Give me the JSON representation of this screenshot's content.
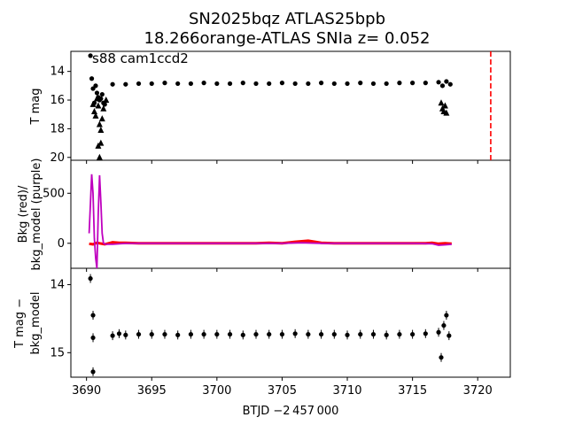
{
  "title": {
    "line1": "SN2025bqz  ATLAS25bpb",
    "line2": "18.266orange-ATLAS SNIa z= 0.052"
  },
  "annotation": "s88 cam1ccd2",
  "colors": {
    "points": "#000000",
    "bkg": "#ff0000",
    "bkg_model": "#bf00bf",
    "vline": "#ff0000"
  },
  "chart_data": [
    {
      "type": "scatter",
      "panel": "top",
      "ylabel": "T mag",
      "ylim": [
        20.2,
        12.6
      ],
      "yticks": [
        14,
        16,
        18,
        20
      ],
      "xlim": [
        3688.8,
        3722.5
      ],
      "vline_x": 3721.0,
      "vline_style": "dashed",
      "detections": {
        "x": [
          3690.3,
          3690.4,
          3690.5,
          3690.6,
          3690.7,
          3690.8,
          3690.9,
          3691.0,
          3691.1,
          3691.2,
          3691.3,
          3691.4,
          3692.0,
          3693.0,
          3694.0,
          3695.0,
          3696.0,
          3697.0,
          3698.0,
          3699.0,
          3700.0,
          3701.0,
          3702.0,
          3703.0,
          3704.0,
          3705.0,
          3706.0,
          3707.0,
          3708.0,
          3709.0,
          3710.0,
          3711.0,
          3712.0,
          3713.0,
          3714.0,
          3715.0,
          3716.0,
          3717.0,
          3717.3,
          3717.6,
          3717.9
        ],
        "y": [
          12.9,
          14.5,
          15.2,
          16.2,
          15.0,
          15.5,
          15.8,
          16.0,
          15.9,
          15.6,
          16.2,
          16.3,
          14.9,
          14.9,
          14.85,
          14.85,
          14.8,
          14.85,
          14.85,
          14.8,
          14.85,
          14.85,
          14.8,
          14.85,
          14.85,
          14.8,
          14.85,
          14.85,
          14.8,
          14.85,
          14.85,
          14.8,
          14.85,
          14.85,
          14.8,
          14.8,
          14.8,
          14.75,
          15.0,
          14.7,
          14.9
        ]
      },
      "upper_limits": {
        "x": [
          3690.5,
          3690.6,
          3690.7,
          3690.8,
          3690.9,
          3691.0,
          3691.1,
          3691.2,
          3691.3,
          3691.5,
          3690.9,
          3691.0,
          3691.1,
          3717.2,
          3717.3,
          3717.4,
          3717.5,
          3717.6
        ],
        "y": [
          16.3,
          16.8,
          17.1,
          15.9,
          16.4,
          17.7,
          18.1,
          17.3,
          16.6,
          16.0,
          19.2,
          20.0,
          19.0,
          16.2,
          16.6,
          16.8,
          16.4,
          16.9
        ]
      }
    },
    {
      "type": "line",
      "panel": "middle",
      "ylabel": "Bkg (red)/\nbkg_model (purple)",
      "ylim": [
        -250,
        830
      ],
      "yticks": [
        0,
        500
      ],
      "xlim": [
        3688.8,
        3722.5
      ],
      "series": [
        {
          "color": "#ff0000",
          "x": [
            3690.2,
            3690.5,
            3690.8,
            3691.0,
            3691.4,
            3692.0,
            3692.5,
            3693.0,
            3694.0,
            3695.0,
            3696.0,
            3697.0,
            3698.0,
            3699.0,
            3700.0,
            3701.0,
            3702.0,
            3703.0,
            3704.0,
            3705.0,
            3706.0,
            3707.0,
            3708.0,
            3709.0,
            3710.0,
            3711.0,
            3712.0,
            3713.0,
            3714.0,
            3715.0,
            3716.0,
            3716.5,
            3717.0,
            3717.5,
            3718.0
          ],
          "y": [
            -5,
            -10,
            5,
            0,
            -10,
            10,
            5,
            5,
            0,
            0,
            0,
            0,
            0,
            0,
            0,
            0,
            0,
            0,
            5,
            0,
            15,
            25,
            5,
            0,
            0,
            0,
            0,
            0,
            0,
            0,
            0,
            5,
            -5,
            0,
            -5
          ]
        },
        {
          "color": "#bf00bf",
          "x": [
            3690.2,
            3690.3,
            3690.4,
            3690.5,
            3690.6,
            3690.7,
            3690.8,
            3690.9,
            3691.0,
            3691.1,
            3691.2,
            3691.3,
            3691.5,
            3692.0,
            3693.0,
            3695.0,
            3700.0,
            3705.0,
            3706.5,
            3708.0,
            3710.0,
            3715.0,
            3716.5,
            3717.0,
            3717.5,
            3718.0
          ],
          "y": [
            100,
            400,
            690,
            500,
            50,
            -150,
            -250,
            300,
            680,
            400,
            100,
            0,
            -10,
            -10,
            0,
            0,
            0,
            0,
            5,
            0,
            0,
            0,
            -5,
            -20,
            -15,
            -10
          ]
        }
      ]
    },
    {
      "type": "scatter",
      "panel": "bottom",
      "ylabel": "T mag −\nbkg_model",
      "ylim": [
        15.36,
        13.76
      ],
      "yticks": [
        14,
        15
      ],
      "xlim": [
        3688.8,
        3722.5
      ],
      "xticks": [
        3690,
        3695,
        3700,
        3705,
        3710,
        3715,
        3720
      ],
      "xlabel": "BTJD −2 457 000",
      "points": {
        "x": [
          3690.3,
          3690.5,
          3690.5,
          3690.5,
          3692.0,
          3692.5,
          3693.0,
          3694.0,
          3695.0,
          3696.0,
          3697.0,
          3698.0,
          3699.0,
          3700.0,
          3701.0,
          3702.0,
          3703.0,
          3704.0,
          3705.0,
          3706.0,
          3707.0,
          3708.0,
          3709.0,
          3710.0,
          3711.0,
          3712.0,
          3713.0,
          3714.0,
          3715.0,
          3716.0,
          3717.0,
          3717.2,
          3717.4,
          3717.6,
          3717.8
        ],
        "y": [
          13.91,
          14.45,
          14.78,
          15.28,
          14.75,
          14.72,
          14.74,
          14.73,
          14.73,
          14.73,
          14.74,
          14.73,
          14.73,
          14.73,
          14.73,
          14.74,
          14.73,
          14.73,
          14.73,
          14.72,
          14.73,
          14.73,
          14.73,
          14.74,
          14.73,
          14.73,
          14.74,
          14.73,
          14.73,
          14.72,
          14.7,
          15.07,
          14.6,
          14.45,
          14.75
        ]
      }
    }
  ]
}
